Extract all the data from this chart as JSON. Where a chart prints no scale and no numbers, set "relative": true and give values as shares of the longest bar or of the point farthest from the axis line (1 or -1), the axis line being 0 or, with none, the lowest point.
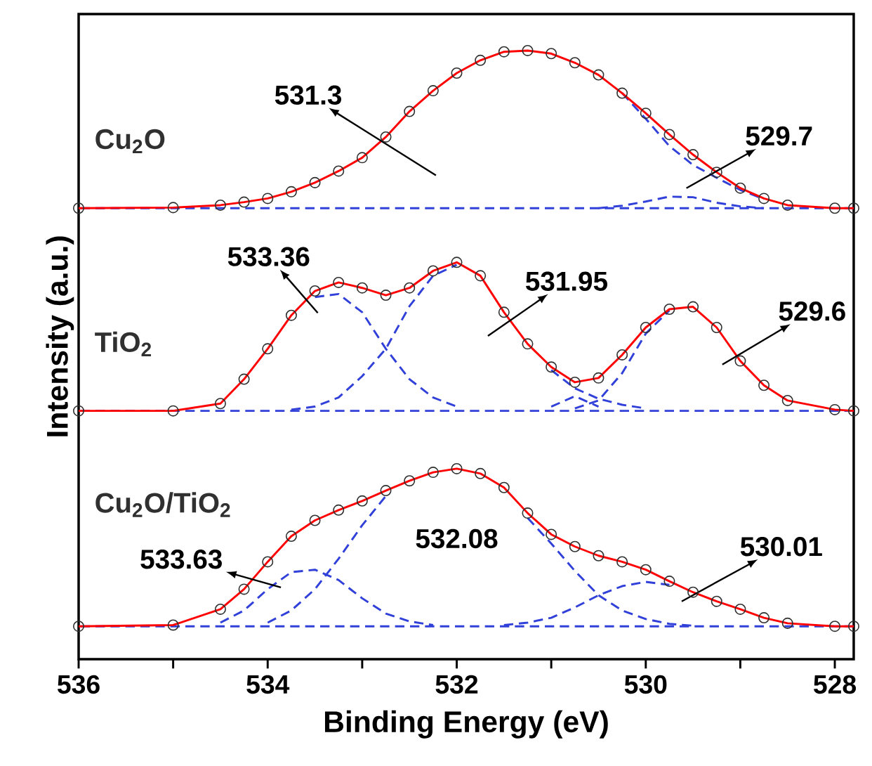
{
  "chart_data": {
    "type": "line",
    "relative": true,
    "xlabel": "Binding Energy (eV)",
    "ylabel": "Intensity (a.u.)",
    "grid": false,
    "xlim": [
      536,
      527.8
    ],
    "xticks": [
      536,
      {
        "value": 535,
        "label": null
      },
      534,
      {
        "value": 533,
        "label": null
      },
      532,
      {
        "value": 531,
        "label": null
      },
      530,
      {
        "value": 529,
        "label": null
      },
      528
    ],
    "x": [
      536,
      535,
      534.5,
      534.25,
      534,
      533.75,
      533.5,
      533.25,
      533,
      532.75,
      532.5,
      532.25,
      532,
      531.75,
      531.5,
      531.25,
      531,
      530.75,
      530.5,
      530.25,
      530,
      529.75,
      529.5,
      529.25,
      529,
      528.75,
      528.5,
      528,
      527.8
    ],
    "ref_lines": [
      {
        "axis": "y",
        "value": 0.741,
        "color": "#3040d8",
        "line_style": "dashed"
      },
      {
        "axis": "y",
        "value": 0.408,
        "color": "#3040d8",
        "line_style": "dashed"
      },
      {
        "axis": "y",
        "value": 0.054,
        "color": "#3040d8",
        "line_style": "dashed"
      }
    ],
    "series": [
      {
        "name": "Cu$_{2}$O",
        "type": "scatter",
        "marker": "circle",
        "color": "#303030",
        "values": [
          0.741,
          0.742,
          0.746,
          0.751,
          0.757,
          0.768,
          0.783,
          0.802,
          0.824,
          0.858,
          0.9,
          0.934,
          0.963,
          0.984,
          0.998,
          1.0,
          0.995,
          0.98,
          0.96,
          0.93,
          0.897,
          0.862,
          0.829,
          0.8,
          0.774,
          0.757,
          0.746,
          0.741,
          0.741
        ]
      },
      {
        "line_style": "dashed",
        "color": "#3040d8",
        "values": [
          null,
          null,
          null,
          null,
          null,
          null,
          null,
          null,
          null,
          null,
          null,
          null,
          null,
          null,
          null,
          null,
          null,
          null,
          null,
          0.93,
          0.888,
          0.843,
          0.812,
          0.791,
          0.771,
          0.756,
          null,
          null,
          null
        ]
      },
      {
        "line_style": "dashed",
        "color": "#3040d8",
        "values": [
          null,
          null,
          null,
          null,
          null,
          null,
          null,
          null,
          null,
          null,
          null,
          null,
          null,
          null,
          null,
          null,
          null,
          null,
          0.741,
          0.745,
          0.752,
          0.76,
          0.759,
          0.75,
          0.744,
          0.741,
          null,
          null,
          null
        ]
      },
      {
        "line_style": "solid",
        "color": "#ff0000",
        "values": [
          0.741,
          0.742,
          0.746,
          0.751,
          0.757,
          0.768,
          0.783,
          0.802,
          0.824,
          0.858,
          0.9,
          0.934,
          0.963,
          0.984,
          0.998,
          1.0,
          0.995,
          0.98,
          0.96,
          0.93,
          0.897,
          0.862,
          0.829,
          0.8,
          0.774,
          0.757,
          0.746,
          0.741,
          0.741
        ]
      },
      {
        "name": "TiO$_{2}$",
        "type": "scatter",
        "marker": "circle",
        "color": "#303030",
        "values": [
          0.408,
          0.408,
          0.42,
          0.46,
          0.51,
          0.565,
          0.605,
          0.619,
          0.61,
          0.598,
          0.61,
          0.638,
          0.652,
          0.63,
          0.57,
          0.518,
          0.48,
          0.455,
          0.462,
          0.5,
          0.545,
          0.575,
          0.579,
          0.545,
          0.49,
          0.45,
          0.425,
          0.41,
          0.408
        ]
      },
      {
        "line_style": "dashed",
        "color": "#3040d8",
        "values": [
          null,
          null,
          null,
          null,
          null,
          null,
          0.595,
          0.6,
          0.57,
          0.51,
          0.46,
          0.43,
          0.415,
          null,
          null,
          null,
          null,
          null,
          null,
          null,
          null,
          null,
          null,
          null,
          null,
          null,
          null,
          null,
          null
        ]
      },
      {
        "line_style": "dashed",
        "color": "#3040d8",
        "values": [
          null,
          null,
          null,
          null,
          null,
          0.41,
          0.415,
          0.43,
          0.465,
          0.51,
          0.58,
          0.63,
          0.648,
          null,
          null,
          null,
          0.475,
          0.445,
          0.428,
          0.418,
          0.412,
          null,
          null,
          null,
          null,
          null,
          null,
          null,
          null
        ]
      },
      {
        "line_style": "dashed",
        "color": "#3040d8",
        "values": [
          null,
          null,
          null,
          null,
          null,
          null,
          null,
          null,
          null,
          null,
          null,
          null,
          null,
          null,
          null,
          null,
          0.415,
          0.432,
          0.415,
          null,
          null,
          null,
          null,
          null,
          null,
          null,
          null,
          null,
          null
        ]
      },
      {
        "line_style": "dashed",
        "color": "#3040d8",
        "values": [
          null,
          null,
          null,
          null,
          null,
          null,
          null,
          null,
          null,
          null,
          null,
          null,
          null,
          null,
          null,
          null,
          null,
          0.412,
          0.425,
          0.47,
          0.535,
          0.573,
          null,
          null,
          null,
          null,
          null,
          null,
          null
        ]
      },
      {
        "line_style": "solid",
        "color": "#ff0000",
        "values": [
          0.408,
          0.408,
          0.42,
          0.46,
          0.51,
          0.565,
          0.605,
          0.619,
          0.61,
          0.598,
          0.61,
          0.638,
          0.652,
          0.63,
          0.57,
          0.518,
          0.48,
          0.455,
          0.462,
          0.5,
          0.545,
          0.575,
          0.579,
          0.545,
          0.49,
          0.45,
          0.425,
          0.41,
          0.408
        ]
      },
      {
        "name": "Cu$_{2}$O/TiO$_{2}$",
        "type": "scatter",
        "marker": "circle",
        "color": "#303030",
        "values": [
          0.054,
          0.056,
          0.082,
          0.115,
          0.16,
          0.202,
          0.228,
          0.245,
          0.26,
          0.277,
          0.293,
          0.307,
          0.313,
          0.305,
          0.282,
          0.24,
          0.205,
          0.185,
          0.17,
          0.16,
          0.147,
          0.128,
          0.11,
          0.095,
          0.082,
          0.068,
          0.059,
          0.054,
          0.054
        ]
      },
      {
        "line_style": "dashed",
        "color": "#3040d8",
        "values": [
          null,
          null,
          0.06,
          0.08,
          0.115,
          0.143,
          0.147,
          0.13,
          0.1,
          0.075,
          0.062,
          0.056,
          null,
          null,
          null,
          null,
          null,
          null,
          null,
          null,
          null,
          null,
          null,
          null,
          null,
          null,
          null,
          null,
          null
        ]
      },
      {
        "line_style": "dashed",
        "color": "#3040d8",
        "values": [
          null,
          null,
          null,
          null,
          0.06,
          0.08,
          0.115,
          0.165,
          0.22,
          0.268,
          null,
          null,
          null,
          null,
          null,
          0.232,
          0.19,
          0.145,
          0.105,
          0.08,
          0.066,
          0.058,
          0.055,
          null,
          null,
          null,
          null,
          null,
          null
        ]
      },
      {
        "line_style": "dashed",
        "color": "#3040d8",
        "values": [
          null,
          null,
          null,
          null,
          null,
          null,
          null,
          null,
          null,
          null,
          null,
          null,
          null,
          null,
          0.056,
          0.06,
          0.068,
          0.085,
          0.105,
          0.12,
          0.127,
          0.122,
          null,
          null,
          null,
          null,
          null,
          null,
          null
        ]
      },
      {
        "line_style": "solid",
        "color": "#ff0000",
        "values": [
          0.054,
          0.056,
          0.082,
          0.115,
          0.16,
          0.202,
          0.228,
          0.245,
          0.26,
          0.277,
          0.293,
          0.307,
          0.313,
          0.305,
          0.282,
          0.24,
          0.205,
          0.185,
          0.17,
          0.16,
          0.147,
          0.128,
          0.11,
          0.095,
          0.082,
          0.068,
          0.059,
          0.054,
          0.054
        ]
      }
    ],
    "annotations": [
      "531.3",
      "529.7",
      "533.36",
      "531.95",
      "529.6",
      "533.63",
      "532.08",
      "530.01"
    ]
  }
}
